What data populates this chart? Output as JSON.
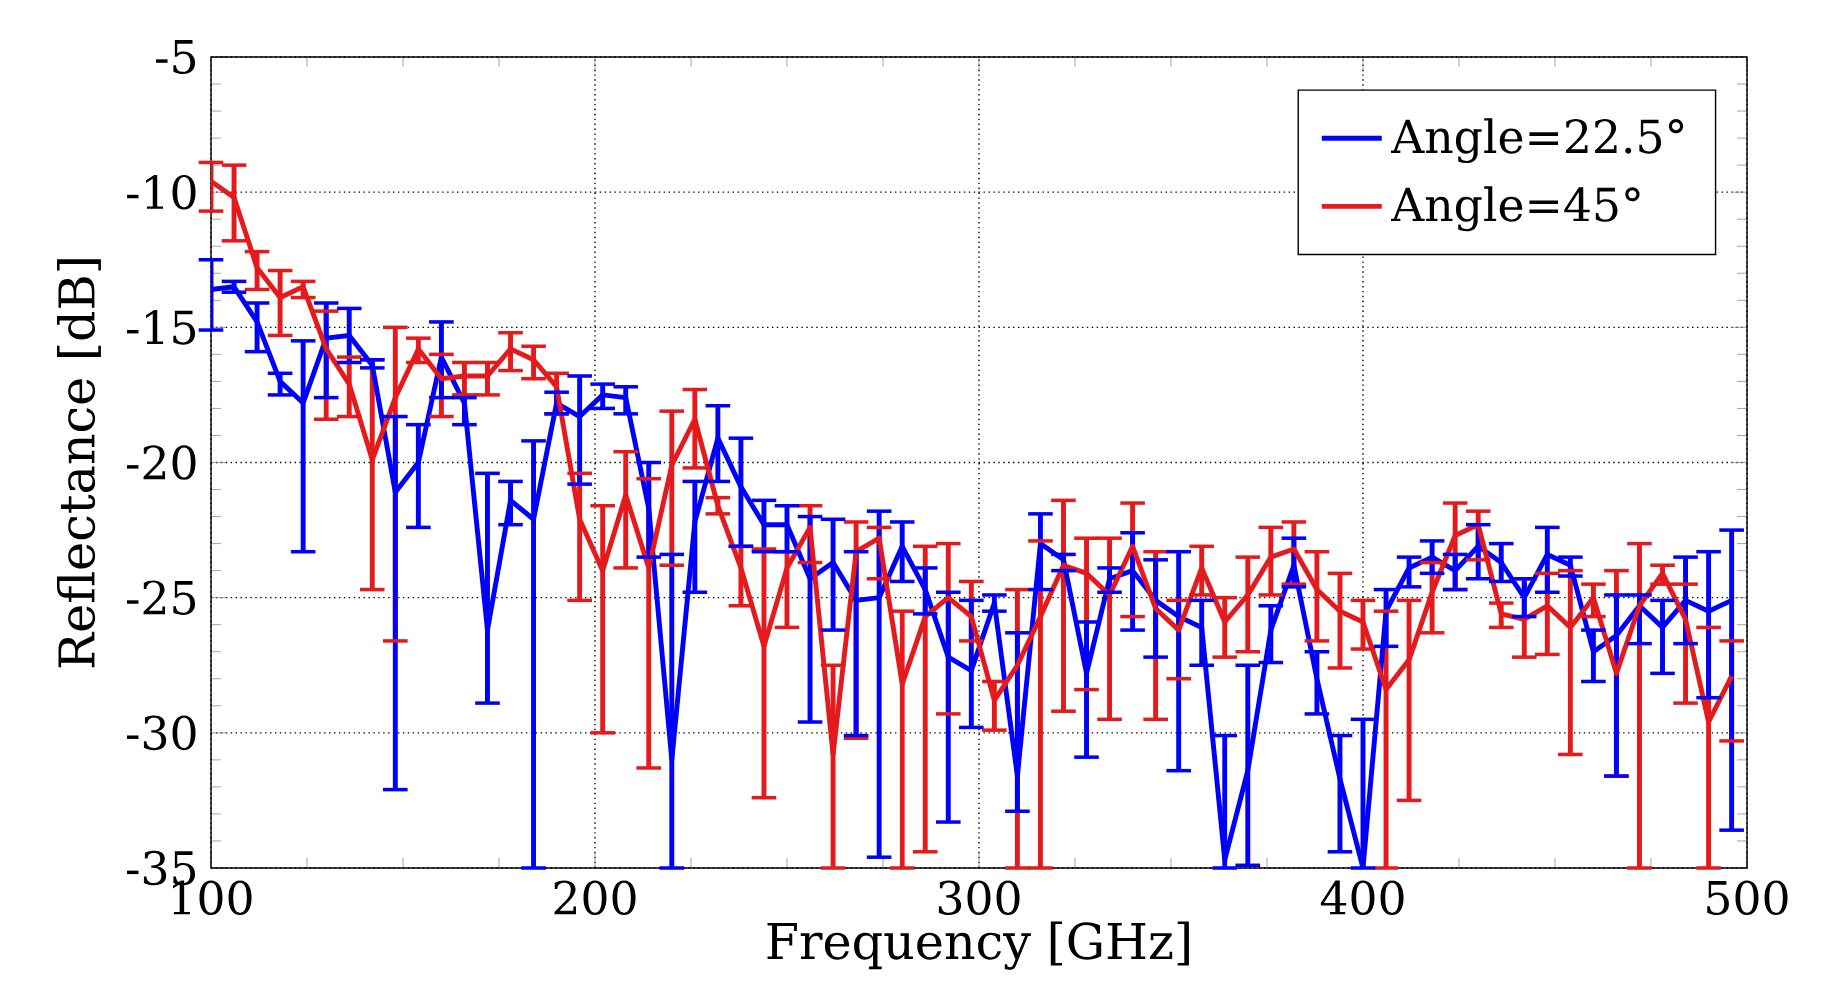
{
  "chart_data": {
    "type": "line",
    "xlabel": "Frequency [GHz]",
    "ylabel": "Reflectance [dB]",
    "x": [
      100,
      106,
      112,
      118,
      124,
      130,
      136,
      142,
      148,
      154,
      160,
      166,
      172,
      178,
      184,
      190,
      196,
      202,
      208,
      214,
      220,
      226,
      232,
      238,
      244,
      250,
      256,
      262,
      268,
      274,
      280,
      286,
      292,
      298,
      304,
      310,
      316,
      322,
      328,
      334,
      340,
      346,
      352,
      358,
      364,
      370,
      376,
      382,
      388,
      394,
      400,
      406,
      412,
      418,
      424,
      430,
      436,
      442,
      448,
      454,
      460,
      466,
      472,
      478,
      484,
      490,
      496
    ],
    "series": [
      {
        "name": "Angle=22.5°",
        "color": "#0000ff",
        "values": [
          -13.6,
          -13.5,
          -14.8,
          -17.0,
          -17.8,
          -15.4,
          -15.3,
          -16.4,
          -21.1,
          -20.0,
          -16.1,
          -17.8,
          -26.2,
          -21.4,
          -22.1,
          -17.8,
          -18.3,
          -17.5,
          -17.6,
          -21.7,
          -31.0,
          -22.2,
          -19.1,
          -20.9,
          -22.3,
          -22.3,
          -24.3,
          -23.7,
          -25.1,
          -25.0,
          -23.1,
          -24.7,
          -27.2,
          -27.7,
          -25.2,
          -31.6,
          -23.0,
          -23.6,
          -27.8,
          -24.3,
          -24.0,
          -25.1,
          -25.7,
          -26.1,
          -34.7,
          -31.4,
          -26.2,
          -23.8,
          -28.0,
          -31.7,
          -35,
          -25.5,
          -23.9,
          -23.5,
          -24.0,
          -23.1,
          -23.7,
          -25.0,
          -23.4,
          -23.8,
          -27.0,
          -26.4,
          -25.3,
          -26.1,
          -25.1,
          -25.5,
          -25.1
        ],
        "errors": [
          [
            -15.1,
            -12.5
          ],
          [
            -13.7,
            -13.3
          ],
          [
            -15.9,
            -14.1
          ],
          [
            -17.5,
            -16.7
          ],
          [
            -23.3,
            -15.5
          ],
          [
            -17.6,
            -14.1
          ],
          [
            -16.3,
            -14.3
          ],
          [
            -16.5,
            -16.2
          ],
          [
            -32.1,
            -18.3
          ],
          [
            -22.4,
            -18.6
          ],
          [
            -17.6,
            -14.8
          ],
          [
            -18.6,
            -17.6
          ],
          [
            -28.9,
            -20.4
          ],
          [
            -22.3,
            -20.7
          ],
          [
            -35,
            -19.2
          ],
          [
            -18.2,
            -17.4
          ],
          [
            -20.8,
            -16.8
          ],
          [
            -18.0,
            -17.1
          ],
          [
            -18.2,
            -17.2
          ],
          [
            -23.5,
            -20.0
          ],
          [
            -35,
            -23.4
          ],
          [
            -24.8,
            -20.7
          ],
          [
            -20.7,
            -17.9
          ],
          [
            -23.1,
            -19.1
          ],
          [
            -23.3,
            -21.4
          ],
          [
            -23.3,
            -21.6
          ],
          [
            -29.6,
            -22.0
          ],
          [
            -26.2,
            -22.1
          ],
          [
            -30.1,
            -23.3
          ],
          [
            -34.6,
            -21.8
          ],
          [
            -24.4,
            -22.2
          ],
          [
            -25.6,
            -23.9
          ],
          [
            -33.3,
            -24.8
          ],
          [
            -29.8,
            -25.1
          ],
          [
            -25.5,
            -24.9
          ],
          [
            -32.9,
            -26.3
          ],
          [
            -24.7,
            -21.9
          ],
          [
            -24.0,
            -23.4
          ],
          [
            -30.9,
            -25.9
          ],
          [
            -24.8,
            -23.9
          ],
          [
            -26.2,
            -22.6
          ],
          [
            -27.2,
            -23.6
          ],
          [
            -31.4,
            -23.3
          ],
          [
            -27.5,
            -25.1
          ],
          [
            -35.0,
            -30.1
          ],
          [
            -34.9,
            -27.5
          ],
          [
            -27.4,
            -25.3
          ],
          [
            -24.6,
            -22.8
          ],
          [
            -29.3,
            -27.0
          ],
          [
            -34.4,
            -30.1
          ],
          [
            -35,
            -29.5
          ],
          [
            -26.8,
            -24.7
          ],
          [
            -24.6,
            -23.5
          ],
          [
            -24.1,
            -22.9
          ],
          [
            -24.7,
            -23.4
          ],
          [
            -24.3,
            -22.3
          ],
          [
            -24.4,
            -23.0
          ],
          [
            -25.7,
            -24.3
          ],
          [
            -24.8,
            -22.4
          ],
          [
            -24.2,
            -23.5
          ],
          [
            -28.1,
            -26.2
          ],
          [
            -31.6,
            -24.9
          ],
          [
            -26.7,
            -24.9
          ],
          [
            -27.8,
            -25.1
          ],
          [
            -26.7,
            -23.5
          ],
          [
            -28.7,
            -23.3
          ],
          [
            -33.6,
            -22.5
          ]
        ]
      },
      {
        "name": "Angle=45°",
        "color": "#e41a1c",
        "values": [
          -9.6,
          -10.2,
          -12.8,
          -13.9,
          -13.5,
          -15.8,
          -17.1,
          -19.9,
          -17.6,
          -15.8,
          -16.9,
          -16.8,
          -16.8,
          -15.8,
          -16.2,
          -17.2,
          -22.1,
          -24.0,
          -21.2,
          -23.9,
          -20.1,
          -18.4,
          -21.6,
          -23.9,
          -26.8,
          -23.9,
          -22.4,
          -30.8,
          -23.3,
          -22.8,
          -28.2,
          -25.7,
          -25.0,
          -25.7,
          -28.8,
          -27.5,
          -25.7,
          -23.8,
          -24.1,
          -24.9,
          -23.1,
          -25.4,
          -26.2,
          -23.9,
          -25.9,
          -24.9,
          -23.5,
          -23.2,
          -24.7,
          -25.5,
          -25.9,
          -28.4,
          -27.3,
          -24.8,
          -22.7,
          -22.3,
          -25.6,
          -25.8,
          -25.3,
          -26.1,
          -25.0,
          -27.8,
          -25.3,
          -24.1,
          -25.8,
          -29.6,
          -27.9
        ],
        "errors": [
          [
            -10.7,
            -8.9
          ],
          [
            -11.8,
            -9.0
          ],
          [
            -13.6,
            -12.2
          ],
          [
            -15.3,
            -12.9
          ],
          [
            -13.9,
            -13.3
          ],
          [
            -18.4,
            -14.4
          ],
          [
            -18.3,
            -16.1
          ],
          [
            -24.7,
            -16.2
          ],
          [
            -26.6,
            -15.0
          ],
          [
            -16.3,
            -15.4
          ],
          [
            -18.3,
            -16.0
          ],
          [
            -17.5,
            -16.3
          ],
          [
            -17.5,
            -16.3
          ],
          [
            -16.6,
            -15.2
          ],
          [
            -16.9,
            -15.7
          ],
          [
            -18.2,
            -16.7
          ],
          [
            -25.1,
            -20.4
          ],
          [
            -30.0,
            -21.6
          ],
          [
            -23.9,
            -19.6
          ],
          [
            -31.3,
            -20.6
          ],
          [
            -23.8,
            -18.1
          ],
          [
            -20.2,
            -17.3
          ],
          [
            -21.9,
            -21.3
          ],
          [
            -25.3,
            -23.1
          ],
          [
            -32.4,
            -23.2
          ],
          [
            -26.1,
            -23.3
          ],
          [
            -23.7,
            -21.6
          ],
          [
            -35,
            -27.5
          ],
          [
            -30.2,
            -22.2
          ],
          [
            -24.3,
            -22.4
          ],
          [
            -35,
            -25.5
          ],
          [
            -34.4,
            -23.1
          ],
          [
            -29.3,
            -23.0
          ],
          [
            -26.6,
            -24.4
          ],
          [
            -29.9,
            -28.1
          ],
          [
            -35,
            -24.7
          ],
          [
            -35,
            -22.9
          ],
          [
            -29.2,
            -21.4
          ],
          [
            -28.4,
            -22.8
          ],
          [
            -29.5,
            -22.8
          ],
          [
            -25.7,
            -21.5
          ],
          [
            -29.5,
            -23.3
          ],
          [
            -28.0,
            -25.1
          ],
          [
            -24.9,
            -23.1
          ],
          [
            -27.2,
            -25.0
          ],
          [
            -27.0,
            -23.5
          ],
          [
            -24.9,
            -22.4
          ],
          [
            -24.5,
            -22.2
          ],
          [
            -26.6,
            -23.3
          ],
          [
            -27.6,
            -24.1
          ],
          [
            -26.9,
            -25.1
          ],
          [
            -35,
            -25.5
          ],
          [
            -32.5,
            -25.1
          ],
          [
            -26.3,
            -23.7
          ],
          [
            -24.7,
            -21.5
          ],
          [
            -23.6,
            -21.8
          ],
          [
            -26.1,
            -25.2
          ],
          [
            -27.2,
            -24.3
          ],
          [
            -27.1,
            -24.1
          ],
          [
            -30.8,
            -24.0
          ],
          [
            -25.7,
            -24.5
          ],
          [
            -31.6,
            -24.0
          ],
          [
            -35.0,
            -23.0
          ],
          [
            -24.5,
            -23.8
          ],
          [
            -28.9,
            -24.5
          ],
          [
            -35.0,
            -26.1
          ],
          [
            -30.3,
            -26.6
          ]
        ]
      }
    ],
    "xlim": [
      100,
      500
    ],
    "ylim": [
      -35,
      -5
    ],
    "xticks": [
      100,
      200,
      300,
      400,
      500
    ],
    "yticks": [
      -35,
      -30,
      -25,
      -20,
      -15,
      -10,
      -5
    ],
    "grid": true,
    "legend": "top right",
    "marker": "none",
    "line_style": "solid"
  }
}
